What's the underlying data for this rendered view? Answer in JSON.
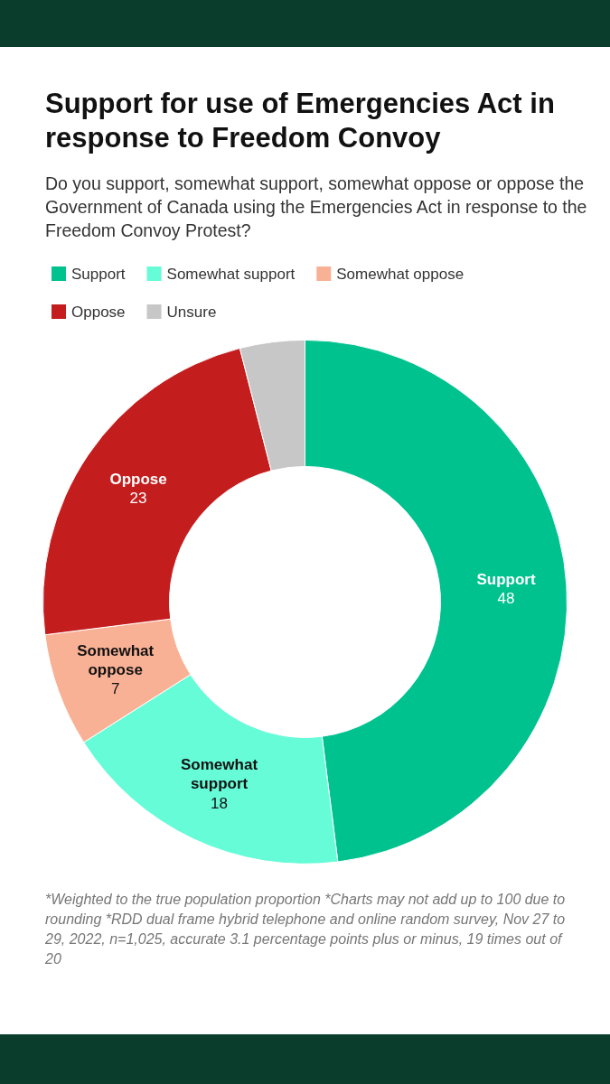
{
  "chart_data": {
    "type": "donut",
    "title": "Support for use of Emergencies Act in response to Freedom Convoy",
    "subtitle": "Do you support, somewhat support, somewhat oppose or oppose the Government of Canada using the Emergencies Act in response to the Freedom Convoy Protest?",
    "categories": [
      "Support",
      "Somewhat support",
      "Somewhat oppose",
      "Oppose",
      "Unsure"
    ],
    "values": [
      48,
      18,
      7,
      23,
      4
    ],
    "value_labels": [
      "48",
      "18",
      "7",
      "23",
      null
    ],
    "colors": [
      "#00c28f",
      "#66fcd8",
      "#f9b195",
      "#c41d1d",
      "#c7c7c7"
    ],
    "legend": "top left",
    "annotations": [
      "*Weighted to the true population proportion *Charts may not add up to 100 due to rounding *RDD dual frame hybrid telephone and online random survey, Nov 27 to 29, 2022, n=1,025, accurate 3.1 percentage points plus or minus, 19 times out of 20"
    ]
  }
}
